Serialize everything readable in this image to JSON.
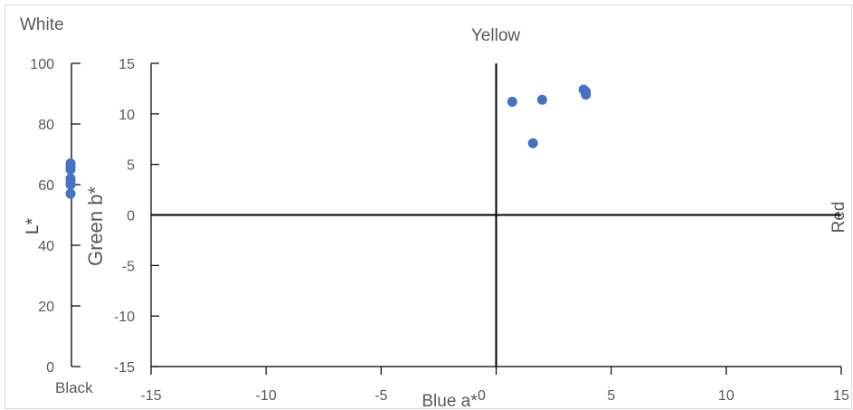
{
  "chart_data": [
    {
      "type": "scatter",
      "title": "",
      "top_label": "White",
      "bottom_label": "Black",
      "ylabel": "L*",
      "ylim": [
        0,
        100
      ],
      "yticks": [
        "0",
        "20",
        "40",
        "60",
        "80",
        "100"
      ],
      "points": [
        67,
        66,
        65,
        62,
        61,
        60,
        57
      ],
      "marker_color": "#4472c4"
    },
    {
      "type": "scatter",
      "title": "",
      "top_label": "Yellow",
      "right_label": "Red",
      "xlabel": "Blue a*",
      "ylabel": "Green b*",
      "xlim": [
        -15,
        15
      ],
      "ylim": [
        -15,
        15
      ],
      "xticks": [
        "-15",
        "-10",
        "-5",
        "0",
        "5",
        "10",
        "15"
      ],
      "yticks": [
        "-15",
        "-10",
        "-5",
        "0",
        "5",
        "10",
        "15"
      ],
      "points": [
        {
          "x": 0.7,
          "y": 11.2
        },
        {
          "x": 2.0,
          "y": 11.4
        },
        {
          "x": 1.6,
          "y": 7.1
        },
        {
          "x": 3.8,
          "y": 12.4
        },
        {
          "x": 3.9,
          "y": 12.2
        },
        {
          "x": 3.9,
          "y": 11.9
        }
      ],
      "marker_color": "#4472c4"
    }
  ]
}
